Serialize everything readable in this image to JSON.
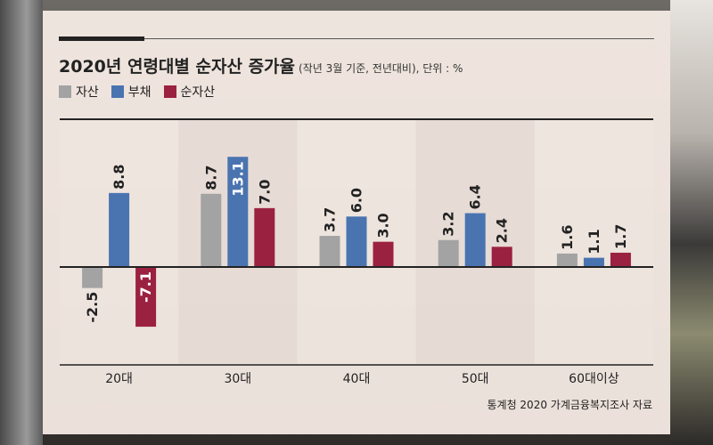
{
  "title": "2020년 연령대별 순자산 증가율",
  "subtitle": "(작년 3월 기준, 전년대비), 단위 : %",
  "source": "통계청 2020 가계금융복지조사 자료",
  "colors": {
    "asset": "#a3a3a3",
    "debt": "#4a74b0",
    "net": "#9b2140"
  },
  "chart_data": {
    "type": "bar",
    "categories": [
      "20대",
      "30대",
      "40대",
      "50대",
      "60대이상"
    ],
    "series": [
      {
        "name": "자산",
        "values": [
          -2.5,
          8.7,
          3.7,
          3.2,
          1.6
        ]
      },
      {
        "name": "부채",
        "values": [
          8.8,
          13.1,
          6.0,
          6.4,
          1.1
        ]
      },
      {
        "name": "순자산",
        "values": [
          -7.1,
          7.0,
          3.0,
          2.4,
          1.7
        ]
      }
    ],
    "value_labels": [
      [
        "-2.5",
        "8.8",
        "-7.1"
      ],
      [
        "8.7",
        "13.1",
        "7.0"
      ],
      [
        "3.7",
        "6.0",
        "3.0"
      ],
      [
        "3.2",
        "6.4",
        "2.4"
      ],
      [
        "1.6",
        "1.1",
        "1.7"
      ]
    ],
    "legend_placement": "top-left",
    "grid": false
  }
}
